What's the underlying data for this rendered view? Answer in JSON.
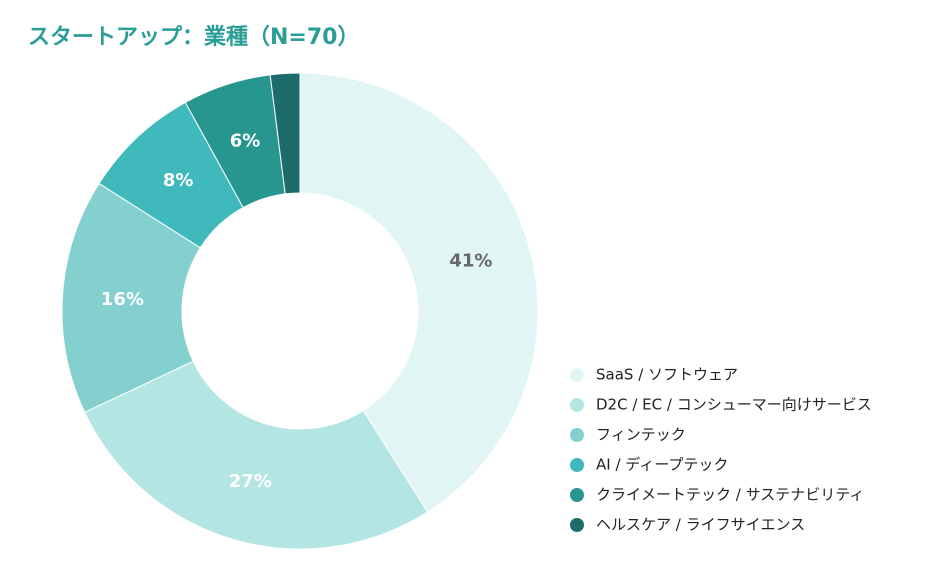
{
  "chart_data": {
    "type": "donut",
    "title": "スタートアップ：業種（N=70）",
    "categories": [
      "SaaS / ソフトウェア",
      "D2C / EC / コンシューマー向けサービス",
      "フィンテック",
      "AI / ディープテック",
      "クライメートテック / サステナビリティ",
      "ヘルスケア / ライフサイエンス"
    ],
    "values": [
      41,
      27,
      16,
      8,
      6,
      2
    ],
    "value_labels": [
      "41%",
      "27%",
      "16%",
      "8%",
      "6%",
      null
    ],
    "colors": [
      "#e0f5f4",
      "#b3e5e3",
      "#84d0cf",
      "#3fb9bb",
      "#27968f",
      "#1d6b6b"
    ],
    "legend": "right-bottom"
  }
}
